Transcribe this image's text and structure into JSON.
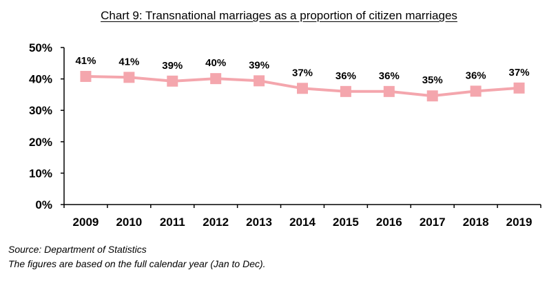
{
  "chart_data": {
    "type": "line",
    "title": "Chart 9: Transnational marriages as a proportion of citizen marriages",
    "xlabel": "",
    "ylabel": "",
    "x": [
      "2009",
      "2010",
      "2011",
      "2012",
      "2013",
      "2014",
      "2015",
      "2016",
      "2017",
      "2018",
      "2019"
    ],
    "series": [
      {
        "values": [
          40.8,
          40.5,
          39.3,
          40.1,
          39.4,
          37.0,
          36.0,
          36.0,
          34.6,
          36.1,
          37.1
        ],
        "data_labels": [
          "41%",
          "41%",
          "39%",
          "40%",
          "39%",
          "37%",
          "36%",
          "36%",
          "35%",
          "36%",
          "37%"
        ],
        "color": "#f4a6ad"
      }
    ],
    "ylim": [
      0,
      50
    ],
    "yticks": [
      "0%",
      "10%",
      "20%",
      "30%",
      "40%",
      "50%"
    ],
    "grid": false,
    "legend": "none"
  },
  "notes": {
    "source": "Source: Department of Statistics",
    "footnote": "The figures are based on the full calendar year (Jan to Dec)."
  }
}
